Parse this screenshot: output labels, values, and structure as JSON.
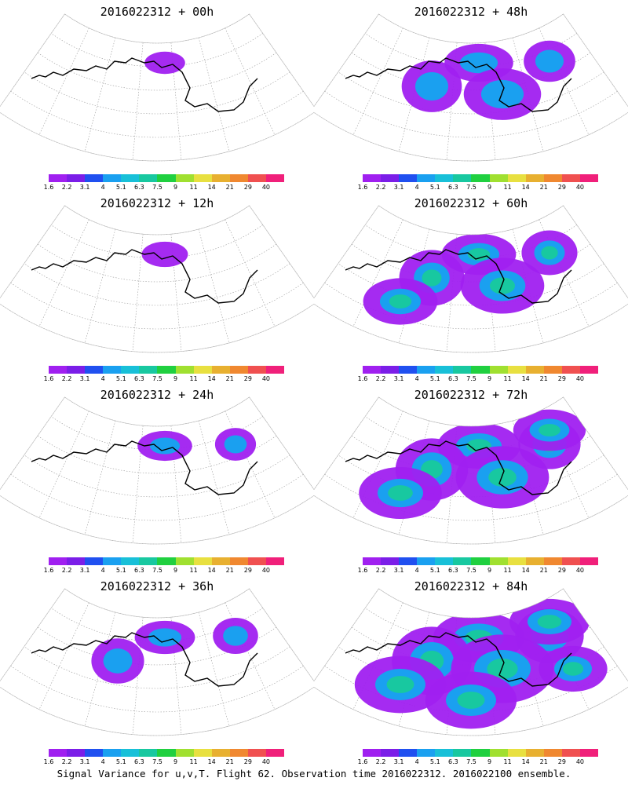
{
  "caption": "Signal Variance for u,v,T. Flight 62. Observation time 2016022312. 2016022100 ensemble.",
  "legend": {
    "labels": [
      "1.6",
      "2.2",
      "3.1",
      "4",
      "5.1",
      "6.3",
      "7.5",
      "9",
      "11",
      "14",
      "21",
      "29",
      "40"
    ],
    "colors": [
      "#a020f0",
      "#7b1ee8",
      "#2050f0",
      "#1aa0f0",
      "#18c0d8",
      "#18c8a0",
      "#20d040",
      "#a0e030",
      "#e8e040",
      "#e8b030",
      "#f08830",
      "#f05050",
      "#f0207a"
    ]
  },
  "panels": [
    {
      "title": "2016022312 + 00h",
      "level": 0.05
    },
    {
      "title": "2016022312 + 48h",
      "level": 0.55
    },
    {
      "title": "2016022312 + 12h",
      "level": 0.15
    },
    {
      "title": "2016022312 + 60h",
      "level": 0.65
    },
    {
      "title": "2016022312 + 24h",
      "level": 0.3
    },
    {
      "title": "2016022312 + 72h",
      "level": 0.8
    },
    {
      "title": "2016022312 + 36h",
      "level": 0.4
    },
    {
      "title": "2016022312 + 84h",
      "level": 0.95
    }
  ]
}
